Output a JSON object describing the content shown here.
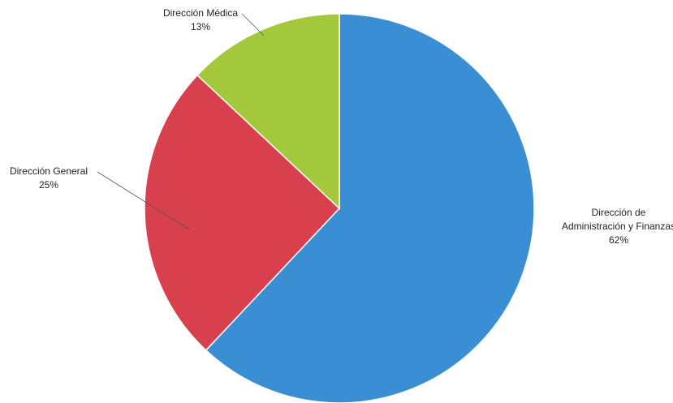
{
  "chart_data": {
    "type": "pie",
    "title": "",
    "slices": [
      {
        "label": "Dirección de Administración y Finanzas",
        "label_lines": [
          "Dirección de",
          "Administración y Finanzas"
        ],
        "value": 62,
        "value_label": "62%",
        "color": "#3a8fd4"
      },
      {
        "label": "Dirección General",
        "label_lines": [
          "Dirección General"
        ],
        "value": 25,
        "value_label": "25%",
        "color": "#d8404e"
      },
      {
        "label": "Dirección Médica",
        "label_lines": [
          "Dirección Médica"
        ],
        "value": 13,
        "value_label": "13%",
        "color": "#a4c83c"
      }
    ],
    "start_angle": "top, clockwise",
    "legend": "none"
  }
}
